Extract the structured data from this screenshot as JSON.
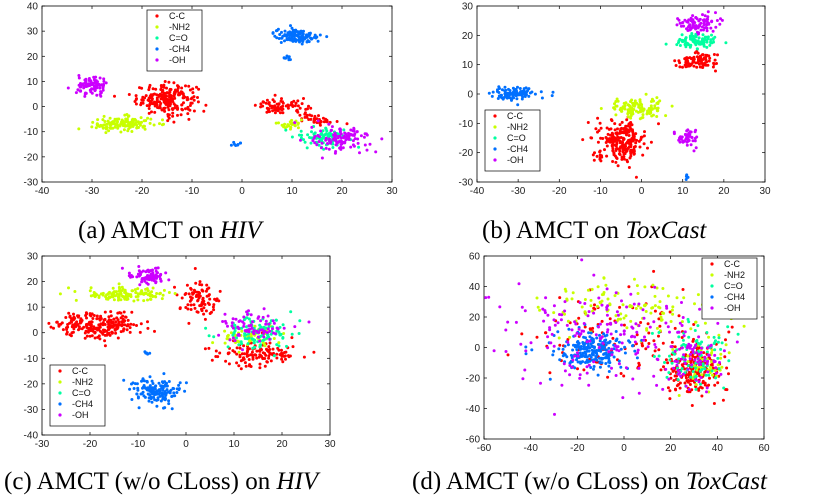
{
  "captions": [
    {
      "prefix": "(a) AMCT on ",
      "dataset": "HIV"
    },
    {
      "prefix": "(b) AMCT on ",
      "dataset": "ToxCast"
    },
    {
      "prefix": "(c) AMCT (w/o CLoss) on ",
      "dataset": "HIV"
    },
    {
      "prefix": "(d) AMCT (w/o CLoss) on ",
      "dataset": "ToxCast"
    }
  ],
  "chart_data": [
    {
      "type": "scatter",
      "title": "",
      "xlim": [
        -40,
        30
      ],
      "ylim": [
        -30,
        40
      ],
      "xticks": [
        -40,
        -30,
        -20,
        -10,
        0,
        10,
        20,
        30
      ],
      "yticks": [
        -30,
        -20,
        -10,
        0,
        10,
        20,
        30,
        40
      ],
      "legend_position": "top-center",
      "series": [
        {
          "name": "C-C",
          "color": "#ff0000",
          "clusters": [
            {
              "cx": -15,
              "cy": 3,
              "rx": 6,
              "ry": 6,
              "n": 220
            },
            {
              "cx": 8,
              "cy": 0,
              "rx": 5,
              "ry": 3,
              "n": 80
            },
            {
              "cx": 15,
              "cy": -5,
              "rx": 4,
              "ry": 2,
              "n": 40
            }
          ]
        },
        {
          "name": "-NH2",
          "color": "#c8ff00",
          "clusters": [
            {
              "cx": -24,
              "cy": -7,
              "rx": 6,
              "ry": 3,
              "n": 130
            },
            {
              "cx": 10,
              "cy": -7,
              "rx": 3,
              "ry": 2,
              "n": 25
            }
          ]
        },
        {
          "name": "C=O",
          "color": "#00ffa0",
          "clusters": [
            {
              "cx": 16,
              "cy": -12,
              "rx": 5,
              "ry": 4,
              "n": 90
            }
          ]
        },
        {
          "name": "-CH4",
          "color": "#0070ff",
          "clusters": [
            {
              "cx": 11,
              "cy": 28,
              "rx": 4.5,
              "ry": 3,
              "n": 130
            },
            {
              "cx": 9,
              "cy": 19,
              "rx": 1,
              "ry": 0.7,
              "n": 8
            },
            {
              "cx": -1,
              "cy": -15,
              "rx": 1.5,
              "ry": 0.7,
              "n": 8
            }
          ]
        },
        {
          "name": "-OH",
          "color": "#cc00ff",
          "clusters": [
            {
              "cx": -30,
              "cy": 8,
              "rx": 3,
              "ry": 4,
              "n": 90
            },
            {
              "cx": 20,
              "cy": -13,
              "rx": 6,
              "ry": 5,
              "n": 110
            }
          ]
        }
      ]
    },
    {
      "type": "scatter",
      "title": "",
      "xlim": [
        -40,
        30
      ],
      "ylim": [
        -30,
        30
      ],
      "xticks": [
        -40,
        -30,
        -20,
        -10,
        0,
        10,
        20,
        30
      ],
      "yticks": [
        -30,
        -20,
        -10,
        0,
        10,
        20,
        30
      ],
      "legend_position": "bottom-left",
      "series": [
        {
          "name": "C-C",
          "color": "#ff0000",
          "clusters": [
            {
              "cx": -5,
              "cy": -16,
              "rx": 6,
              "ry": 7,
              "n": 230
            },
            {
              "cx": 13,
              "cy": 11,
              "rx": 5,
              "ry": 3,
              "n": 90
            }
          ]
        },
        {
          "name": "-NH2",
          "color": "#c8ff00",
          "clusters": [
            {
              "cx": -1,
              "cy": -5,
              "rx": 7,
              "ry": 3,
              "n": 120
            }
          ]
        },
        {
          "name": "C=O",
          "color": "#00ffa0",
          "clusters": [
            {
              "cx": 13,
              "cy": 18,
              "rx": 5,
              "ry": 3,
              "n": 90
            }
          ]
        },
        {
          "name": "-CH4",
          "color": "#0070ff",
          "clusters": [
            {
              "cx": -31,
              "cy": 0,
              "rx": 5,
              "ry": 2,
              "n": 110
            },
            {
              "cx": 11,
              "cy": -28,
              "rx": 0.6,
              "ry": 0.7,
              "n": 6
            }
          ]
        },
        {
          "name": "-OH",
          "color": "#cc00ff",
          "clusters": [
            {
              "cx": 14,
              "cy": 24,
              "rx": 5,
              "ry": 3,
              "n": 90
            },
            {
              "cx": 11,
              "cy": -15,
              "rx": 2.5,
              "ry": 3,
              "n": 45
            }
          ]
        }
      ]
    },
    {
      "type": "scatter",
      "title": "",
      "xlim": [
        -30,
        30
      ],
      "ylim": [
        -40,
        30
      ],
      "xticks": [
        -30,
        -20,
        -10,
        0,
        10,
        20,
        30
      ],
      "yticks": [
        -40,
        -30,
        -20,
        -10,
        0,
        10,
        20,
        30
      ],
      "legend_position": "bottom-left",
      "series": [
        {
          "name": "C-C",
          "color": "#ff0000",
          "clusters": [
            {
              "cx": -18,
              "cy": 3,
              "rx": 9,
              "ry": 5,
              "n": 240
            },
            {
              "cx": 3,
              "cy": 13,
              "rx": 4,
              "ry": 7,
              "n": 90
            },
            {
              "cx": 15,
              "cy": -8,
              "rx": 8,
              "ry": 5,
              "n": 130
            }
          ]
        },
        {
          "name": "-NH2",
          "color": "#c8ff00",
          "clusters": [
            {
              "cx": -13,
              "cy": 15,
              "rx": 9,
              "ry": 2.5,
              "n": 130
            },
            {
              "cx": 13,
              "cy": -2,
              "rx": 6,
              "ry": 4,
              "n": 60
            }
          ]
        },
        {
          "name": "C=O",
          "color": "#00ffa0",
          "clusters": [
            {
              "cx": 14,
              "cy": 0,
              "rx": 7,
              "ry": 6,
              "n": 110
            }
          ]
        },
        {
          "name": "-CH4",
          "color": "#0070ff",
          "clusters": [
            {
              "cx": -6,
              "cy": -23,
              "rx": 5,
              "ry": 5,
              "n": 150
            },
            {
              "cx": -8,
              "cy": -8,
              "rx": 1,
              "ry": 0.7,
              "n": 6
            }
          ]
        },
        {
          "name": "-OH",
          "color": "#cc00ff",
          "clusters": [
            {
              "cx": -8,
              "cy": 22,
              "rx": 4,
              "ry": 3,
              "n": 90
            },
            {
              "cx": 14,
              "cy": 2,
              "rx": 7,
              "ry": 6,
              "n": 80
            }
          ]
        }
      ]
    },
    {
      "type": "scatter",
      "title": "",
      "xlim": [
        -60,
        60
      ],
      "ylim": [
        -60,
        60
      ],
      "xticks": [
        -60,
        -40,
        -20,
        0,
        20,
        40,
        60
      ],
      "yticks": [
        -60,
        -40,
        -20,
        0,
        20,
        40,
        60
      ],
      "legend_position": "top-right",
      "series": [
        {
          "name": "C-C",
          "color": "#ff0000",
          "clusters": [
            {
              "cx": 30,
              "cy": -15,
              "rx": 12,
              "ry": 18,
              "n": 200
            },
            {
              "cx": 0,
              "cy": 10,
              "rx": 45,
              "ry": 30,
              "n": 120
            }
          ]
        },
        {
          "name": "-NH2",
          "color": "#c8ff00",
          "clusters": [
            {
              "cx": 0,
              "cy": 25,
              "rx": 40,
              "ry": 20,
              "n": 120
            },
            {
              "cx": 35,
              "cy": -10,
              "rx": 12,
              "ry": 18,
              "n": 50
            }
          ]
        },
        {
          "name": "C=O",
          "color": "#00ffa0",
          "clusters": [
            {
              "cx": 30,
              "cy": -5,
              "rx": 15,
              "ry": 20,
              "n": 100
            }
          ]
        },
        {
          "name": "-CH4",
          "color": "#0070ff",
          "clusters": [
            {
              "cx": -15,
              "cy": -2,
              "rx": 17,
              "ry": 12,
              "n": 230
            }
          ]
        },
        {
          "name": "-OH",
          "color": "#cc00ff",
          "clusters": [
            {
              "cx": -10,
              "cy": 10,
              "rx": 45,
              "ry": 35,
              "n": 180
            },
            {
              "cx": 30,
              "cy": -10,
              "rx": 15,
              "ry": 20,
              "n": 70
            }
          ]
        }
      ]
    }
  ]
}
